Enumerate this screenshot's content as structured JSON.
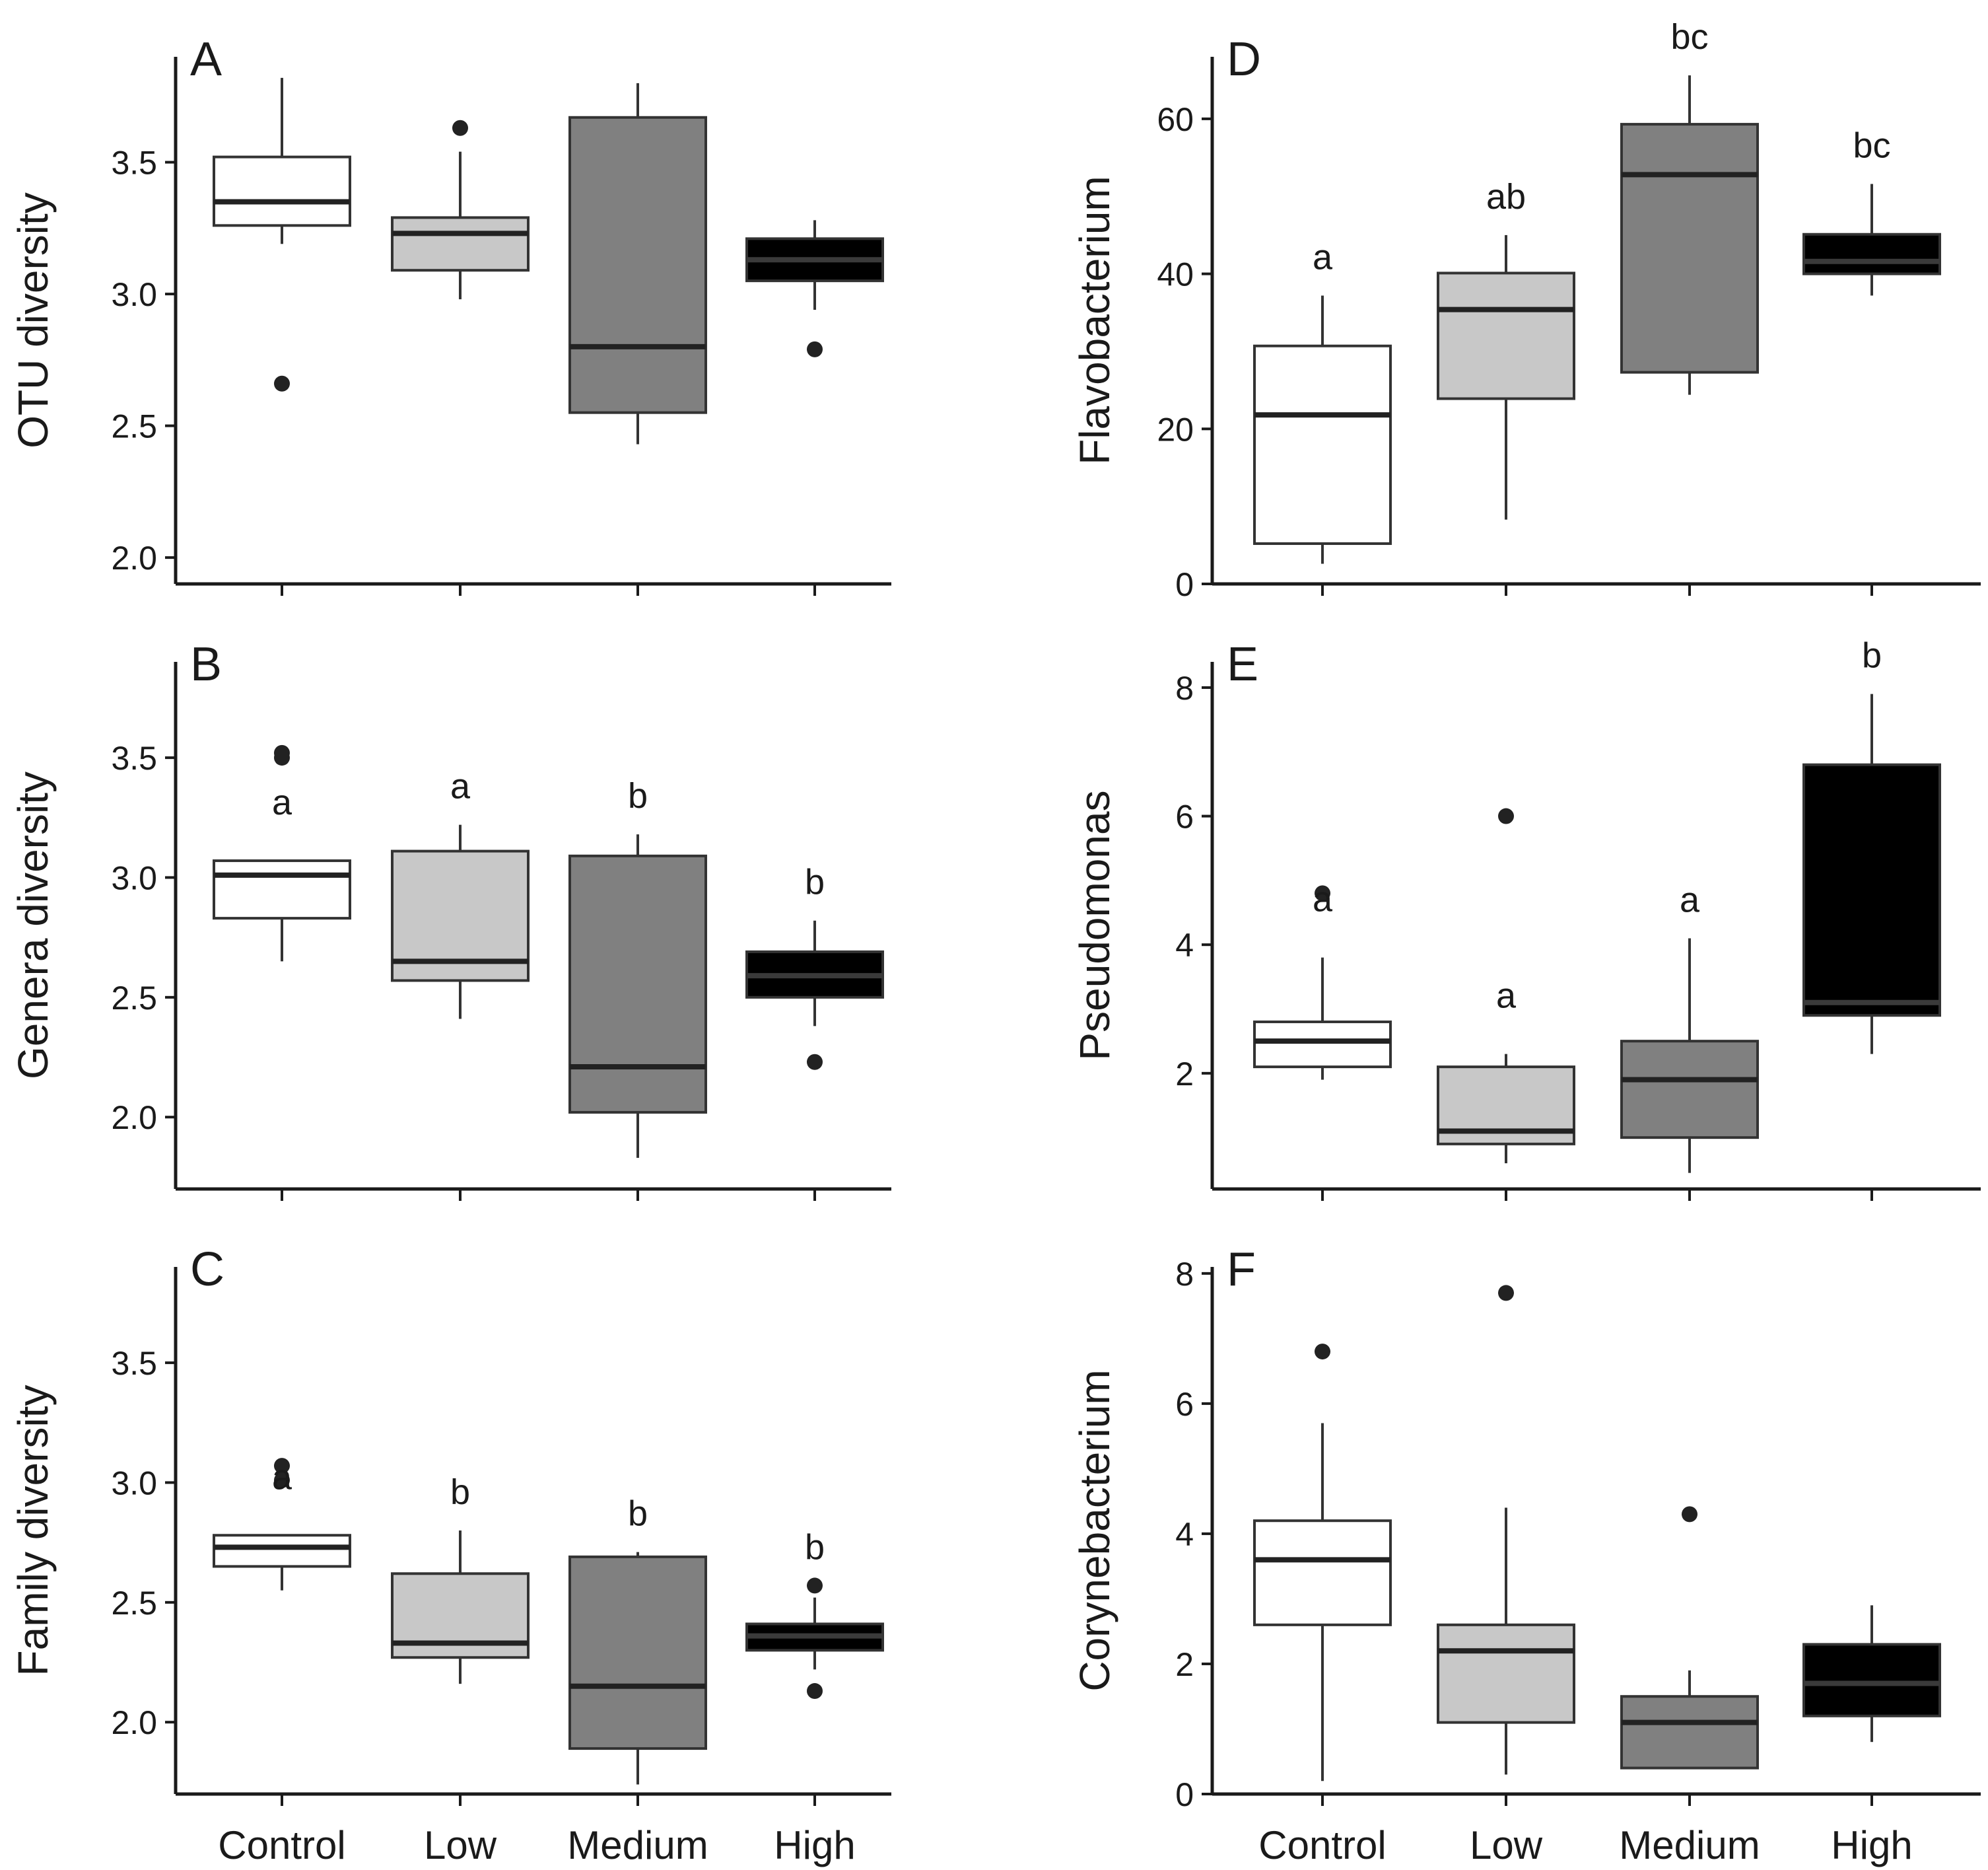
{
  "chart_data": [
    {
      "type": "boxplot",
      "panel_letter": "A",
      "ylabel": "OTU diversity",
      "ylim": [
        1.9,
        3.9
      ],
      "yticks": [
        "2.0",
        "2.5",
        "3.0",
        "3.5"
      ],
      "categories": [
        "Control",
        "Low",
        "Medium",
        "High"
      ],
      "colors": [
        "#ffffff",
        "#c8c8c8",
        "#808080",
        "#000000"
      ],
      "boxes": [
        {
          "q1": 3.26,
          "median": 3.35,
          "q3": 3.52,
          "whisker_low": 3.19,
          "whisker_high": 3.82,
          "outliers": [
            2.66
          ],
          "letters": ""
        },
        {
          "q1": 3.09,
          "median": 3.23,
          "q3": 3.29,
          "whisker_low": 2.98,
          "whisker_high": 3.54,
          "outliers": [
            3.63
          ],
          "letters": ""
        },
        {
          "q1": 2.55,
          "median": 2.8,
          "q3": 3.67,
          "whisker_low": 2.43,
          "whisker_high": 3.8,
          "outliers": [],
          "letters": ""
        },
        {
          "q1": 3.05,
          "median": 3.13,
          "q3": 3.21,
          "whisker_low": 2.94,
          "whisker_high": 3.28,
          "outliers": [
            2.79
          ],
          "letters": ""
        }
      ]
    },
    {
      "type": "boxplot",
      "panel_letter": "B",
      "ylabel": "Genera diversity",
      "ylim": [
        1.7,
        3.9
      ],
      "yticks": [
        "2.0",
        "2.5",
        "3.0",
        "3.5"
      ],
      "categories": [
        "Control",
        "Low",
        "Medium",
        "High"
      ],
      "colors": [
        "#ffffff",
        "#c8c8c8",
        "#808080",
        "#000000"
      ],
      "boxes": [
        {
          "q1": 2.83,
          "median": 3.01,
          "q3": 3.07,
          "whisker_low": 2.65,
          "whisker_high": 3.07,
          "outliers": [
            3.5,
            3.52
          ],
          "letters": "a"
        },
        {
          "q1": 2.57,
          "median": 2.65,
          "q3": 3.11,
          "whisker_low": 2.41,
          "whisker_high": 3.22,
          "outliers": [],
          "letters": "a"
        },
        {
          "q1": 2.02,
          "median": 2.21,
          "q3": 3.09,
          "whisker_low": 1.83,
          "whisker_high": 3.18,
          "outliers": [],
          "letters": "b"
        },
        {
          "q1": 2.5,
          "median": 2.59,
          "q3": 2.69,
          "whisker_low": 2.38,
          "whisker_high": 2.82,
          "outliers": [
            2.23
          ],
          "letters": "b"
        }
      ]
    },
    {
      "type": "boxplot",
      "panel_letter": "C",
      "ylabel": "Family diversity",
      "ylim": [
        1.7,
        3.9
      ],
      "yticks": [
        "2.0",
        "2.5",
        "3.0",
        "3.5"
      ],
      "categories": [
        "Control",
        "Low",
        "Medium",
        "High"
      ],
      "colors": [
        "#ffffff",
        "#c8c8c8",
        "#808080",
        "#000000"
      ],
      "boxes": [
        {
          "q1": 2.65,
          "median": 2.73,
          "q3": 2.78,
          "whisker_low": 2.55,
          "whisker_high": 2.78,
          "outliers": [
            3.01,
            3.07
          ],
          "letters": "a"
        },
        {
          "q1": 2.27,
          "median": 2.33,
          "q3": 2.62,
          "whisker_low": 2.16,
          "whisker_high": 2.8,
          "outliers": [],
          "letters": "b"
        },
        {
          "q1": 1.89,
          "median": 2.15,
          "q3": 2.69,
          "whisker_low": 1.74,
          "whisker_high": 2.71,
          "outliers": [],
          "letters": "b"
        },
        {
          "q1": 2.3,
          "median": 2.36,
          "q3": 2.41,
          "whisker_low": 2.22,
          "whisker_high": 2.52,
          "outliers": [
            2.13,
            2.57
          ],
          "letters": "b"
        }
      ]
    },
    {
      "type": "boxplot",
      "panel_letter": "D",
      "ylabel": "Flavobacterium",
      "ylim": [
        0,
        68
      ],
      "yticks": [
        "0",
        "20",
        "40",
        "60"
      ],
      "categories": [
        "Control",
        "Low",
        "Medium",
        "High"
      ],
      "colors": [
        "#ffffff",
        "#c8c8c8",
        "#808080",
        "#000000"
      ],
      "boxes": [
        {
          "q1": 5.2,
          "median": 21.8,
          "q3": 30.7,
          "whisker_low": 2.6,
          "whisker_high": 37.2,
          "outliers": [],
          "letters": "a"
        },
        {
          "q1": 23.9,
          "median": 35.4,
          "q3": 40.1,
          "whisker_low": 8.3,
          "whisker_high": 45.0,
          "outliers": [],
          "letters": "ab"
        },
        {
          "q1": 27.3,
          "median": 52.8,
          "q3": 59.3,
          "whisker_low": 24.4,
          "whisker_high": 65.6,
          "outliers": [],
          "letters": "bc"
        },
        {
          "q1": 40.0,
          "median": 41.6,
          "q3": 45.1,
          "whisker_low": 37.2,
          "whisker_high": 51.6,
          "outliers": [],
          "letters": "bc"
        }
      ]
    },
    {
      "type": "boxplot",
      "panel_letter": "E",
      "ylabel": "Pseudomonas",
      "ylim": [
        0.2,
        8.4
      ],
      "yticks": [
        "2",
        "4",
        "6",
        "8"
      ],
      "categories": [
        "Control",
        "Low",
        "Medium",
        "High"
      ],
      "colors": [
        "#ffffff",
        "#c8c8c8",
        "#808080",
        "#000000"
      ],
      "boxes": [
        {
          "q1": 2.1,
          "median": 2.5,
          "q3": 2.8,
          "whisker_low": 1.9,
          "whisker_high": 3.8,
          "outliers": [
            4.8
          ],
          "letters": "a"
        },
        {
          "q1": 0.9,
          "median": 1.1,
          "q3": 2.1,
          "whisker_low": 0.6,
          "whisker_high": 2.3,
          "outliers": [
            6.0
          ],
          "letters": "a"
        },
        {
          "q1": 1.0,
          "median": 1.9,
          "q3": 2.5,
          "whisker_low": 0.45,
          "whisker_high": 4.1,
          "outliers": [],
          "letters": "a"
        },
        {
          "q1": 2.9,
          "median": 3.1,
          "q3": 6.8,
          "whisker_low": 2.3,
          "whisker_high": 7.9,
          "outliers": [],
          "letters": "b"
        }
      ]
    },
    {
      "type": "boxplot",
      "panel_letter": "F",
      "ylabel": "Corynebacterium",
      "ylim": [
        0,
        8.1
      ],
      "yticks": [
        "0",
        "2",
        "4",
        "6",
        "8"
      ],
      "xlabels": [
        "Control",
        "Low",
        "Medium",
        "High"
      ],
      "categories": [
        "Control",
        "Low",
        "Medium",
        "High"
      ],
      "colors": [
        "#ffffff",
        "#c8c8c8",
        "#808080",
        "#000000"
      ],
      "boxes": [
        {
          "q1": 2.6,
          "median": 3.6,
          "q3": 4.2,
          "whisker_low": 0.2,
          "whisker_high": 5.7,
          "outliers": [
            6.8
          ],
          "letters": ""
        },
        {
          "q1": 1.1,
          "median": 2.2,
          "q3": 2.6,
          "whisker_low": 0.3,
          "whisker_high": 4.4,
          "outliers": [
            7.7
          ],
          "letters": ""
        },
        {
          "q1": 0.4,
          "median": 1.1,
          "q3": 1.5,
          "whisker_low": 0.4,
          "whisker_high": 1.9,
          "outliers": [
            4.3
          ],
          "letters": ""
        },
        {
          "q1": 1.2,
          "median": 1.7,
          "q3": 2.3,
          "whisker_low": 0.8,
          "whisker_high": 2.9,
          "outliers": [],
          "letters": ""
        }
      ]
    }
  ]
}
